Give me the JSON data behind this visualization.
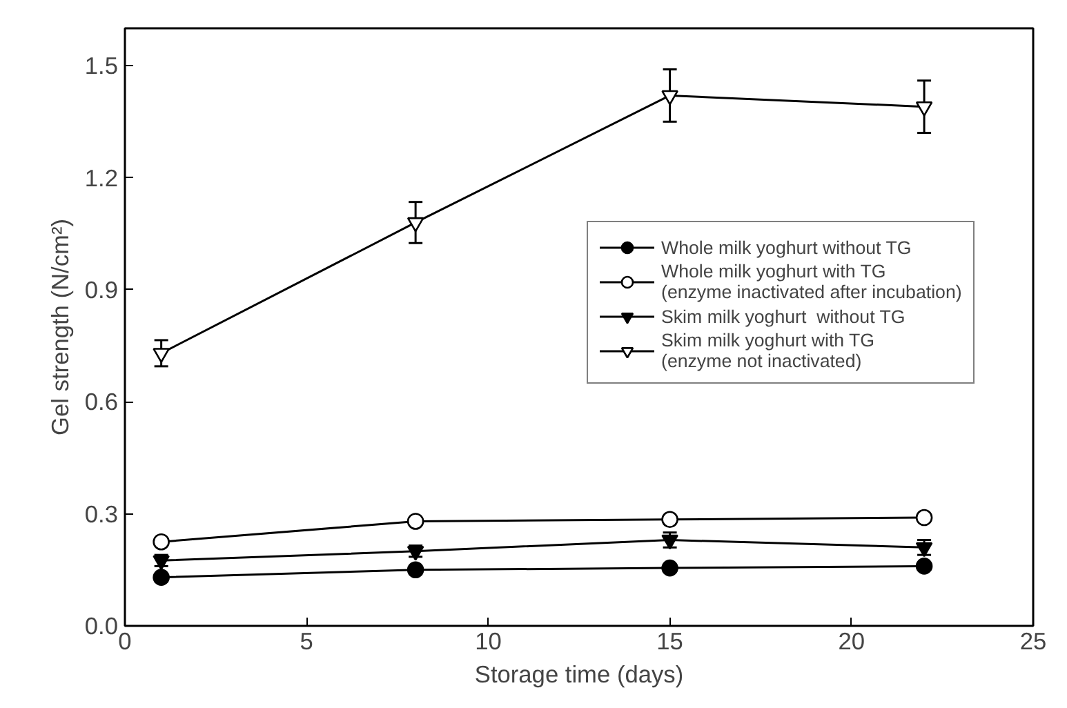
{
  "chart_data": {
    "type": "line",
    "xlabel": "Storage time (days)",
    "ylabel": "Gel strength (N/cm²)",
    "x": [
      1,
      8,
      15,
      22
    ],
    "xlim": [
      0,
      25
    ],
    "xticks": [
      0,
      5,
      10,
      15,
      20,
      25
    ],
    "ylim": [
      0,
      1.6
    ],
    "yticks": [
      {
        "value": 0,
        "label": "0.0"
      },
      {
        "value": 0.3,
        "label": "0.3"
      },
      {
        "value": 0.6,
        "label": "0.6"
      },
      {
        "value": 0.9,
        "label": "0.9"
      },
      {
        "value": 1.2,
        "label": "1.2"
      },
      {
        "value": 1.5,
        "label": "1.5"
      }
    ],
    "grid": false,
    "legend": "right",
    "line_style": "solid",
    "series": [
      {
        "name": "Whole milk yoghurt without TG",
        "color": "#000000",
        "marker": "circle",
        "values": [
          0.13,
          0.15,
          0.155,
          0.16
        ]
      },
      {
        "name": "Whole milk yoghurt with TG\n(enzyme inactivated after incubation)",
        "color": "#000000",
        "marker": "circle",
        "values": [
          0.225,
          0.28,
          0.285,
          0.29
        ]
      },
      {
        "name": "Skim milk yoghurt  without TG",
        "color": "#000000",
        "marker": "triangle",
        "values": [
          0.175,
          0.2,
          0.23,
          0.21
        ],
        "errors": [
          0.015,
          0.015,
          0.02,
          0.02
        ]
      },
      {
        "name": "Skim milk yoghurt with TG\n(enzyme not inactivated)",
        "color": "#000000",
        "marker": "triangle",
        "values": [
          0.73,
          1.08,
          1.42,
          1.39
        ],
        "errors": [
          0.035,
          0.055,
          0.07,
          0.07
        ]
      }
    ]
  }
}
